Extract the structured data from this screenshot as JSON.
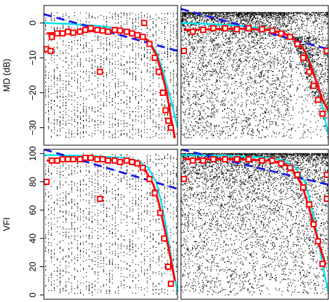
{
  "colors": {
    "points": "#000000",
    "red_fit": "#ff0000",
    "red_markers": "#ff0000",
    "cyan_curve": "#00e5ee",
    "blue_dashed": "#1a1ae6",
    "background": "#ffffff"
  },
  "chart_data": [
    {
      "type": "scatter",
      "panel": "top-left",
      "ylabel": "MD (dB)",
      "ylim": [
        -35,
        5
      ],
      "xlim": [
        0,
        1
      ],
      "yticks": [
        {
          "value": 0,
          "label": "0"
        },
        {
          "value": -10,
          "label": "−10"
        },
        {
          "value": -20,
          "label": "−20"
        },
        {
          "value": -30,
          "label": "−30"
        }
      ],
      "series": [
        {
          "kind": "red-squares",
          "x": [
            0.02,
            0.06,
            0.1,
            0.14,
            0.18,
            0.22,
            0.27,
            0.31,
            0.35,
            0.4,
            0.44,
            0.48,
            0.53,
            0.57,
            0.62,
            0.66,
            0.7,
            0.74,
            0.79,
            0.83,
            0.86,
            0.89,
            0.91,
            0.93,
            0.95,
            0.05,
            0.42,
            0.75
          ],
          "y": [
            -7.5,
            -4,
            -3,
            -3,
            -2.5,
            -2.8,
            -2.5,
            -2,
            -1.5,
            -2,
            -2.2,
            -2.5,
            -2,
            -2.2,
            -2.5,
            -3,
            -3.5,
            -4,
            -6,
            -10,
            -14,
            -20,
            -25,
            -28,
            -30,
            -8,
            -14,
            0
          ]
        },
        {
          "kind": "cyan-curve",
          "x": [
            0.0,
            0.2,
            0.4,
            0.6,
            0.7,
            0.8,
            0.85,
            0.9,
            0.95,
            1.0
          ],
          "y": [
            0,
            -0.3,
            -0.8,
            -1.8,
            -3,
            -6,
            -9,
            -15,
            -22,
            -30
          ]
        },
        {
          "kind": "blue-dashed-line",
          "x": [
            0,
            1
          ],
          "y": [
            2.5,
            -8
          ]
        },
        {
          "kind": "red-fit",
          "x": [
            0.02,
            0.2,
            0.4,
            0.6,
            0.7,
            0.78,
            0.84,
            0.88,
            0.92,
            0.95,
            0.98
          ],
          "y": [
            -3,
            -2.7,
            -2.3,
            -2.3,
            -3,
            -5,
            -9,
            -14,
            -20,
            -27,
            -33
          ]
        }
      ]
    },
    {
      "type": "scatter",
      "panel": "top-right",
      "ylim": [
        -35,
        5
      ],
      "xlim": [
        0,
        1
      ],
      "series": [
        {
          "kind": "red-squares",
          "x": [
            0.02,
            0.08,
            0.15,
            0.22,
            0.3,
            0.38,
            0.46,
            0.55,
            0.62,
            0.68,
            0.74,
            0.79,
            0.83,
            0.87,
            0.9,
            0.93,
            0.96,
            0.99
          ],
          "y": [
            -8,
            -2.5,
            -2,
            -1.5,
            -1.5,
            -1.8,
            -1.5,
            -1.8,
            -2.2,
            -3,
            -4,
            -6,
            -10,
            -14,
            -18,
            -22,
            -26,
            -8
          ]
        },
        {
          "kind": "cyan-curve",
          "x": [
            0.0,
            0.2,
            0.4,
            0.6,
            0.7,
            0.8,
            0.86,
            0.9,
            0.95,
            1.0
          ],
          "y": [
            0,
            -0.3,
            -0.8,
            -1.8,
            -3,
            -6,
            -9,
            -14,
            -22,
            -32
          ]
        },
        {
          "kind": "blue-dashed-line",
          "x": [
            0,
            1
          ],
          "y": [
            4,
            -7.5
          ]
        },
        {
          "kind": "red-fit",
          "x": [
            0.02,
            0.2,
            0.4,
            0.6,
            0.7,
            0.78,
            0.84,
            0.88,
            0.92,
            0.96,
            1.0
          ],
          "y": [
            -2,
            -1.8,
            -1.6,
            -2,
            -3,
            -5,
            -8,
            -12,
            -17,
            -22,
            -25
          ]
        }
      ]
    },
    {
      "type": "scatter",
      "panel": "bottom-left",
      "ylabel": "VFI",
      "ylim": [
        -3,
        103
      ],
      "xlim": [
        0,
        1
      ],
      "yticks": [
        {
          "value": 0,
          "label": "0"
        },
        {
          "value": 20,
          "label": "20"
        },
        {
          "value": 40,
          "label": "40"
        },
        {
          "value": 60,
          "label": "60"
        },
        {
          "value": 80,
          "label": "80"
        },
        {
          "value": 100,
          "label": "100"
        }
      ],
      "series": [
        {
          "kind": "red-squares",
          "x": [
            0.02,
            0.06,
            0.1,
            0.14,
            0.18,
            0.22,
            0.27,
            0.31,
            0.35,
            0.4,
            0.44,
            0.48,
            0.53,
            0.57,
            0.62,
            0.66,
            0.7,
            0.74,
            0.79,
            0.83,
            0.87,
            0.9,
            0.93,
            0.95,
            0.42
          ],
          "y": [
            80,
            95,
            95,
            96,
            96,
            96,
            96,
            97,
            97,
            96,
            96,
            95,
            95,
            94,
            95,
            94,
            93,
            90,
            82,
            72,
            58,
            40,
            20,
            8,
            68
          ]
        },
        {
          "kind": "cyan-curve",
          "x": [
            0.0,
            0.3,
            0.6,
            0.7,
            0.78,
            0.84,
            0.88,
            0.92,
            0.96,
            1.0
          ],
          "y": [
            99,
            98.5,
            97,
            95,
            90,
            80,
            65,
            45,
            22,
            2
          ]
        },
        {
          "kind": "blue-dashed-line",
          "x": [
            0,
            1
          ],
          "y": [
            103,
            75
          ]
        },
        {
          "kind": "red-fit",
          "x": [
            0.02,
            0.2,
            0.4,
            0.6,
            0.7,
            0.76,
            0.82,
            0.86,
            0.9,
            0.94,
            0.98
          ],
          "y": [
            95,
            96,
            96,
            95,
            93,
            88,
            78,
            65,
            48,
            30,
            10
          ]
        }
      ]
    },
    {
      "type": "scatter",
      "panel": "bottom-right",
      "ylim": [
        -3,
        103
      ],
      "xlim": [
        0,
        1
      ],
      "series": [
        {
          "kind": "red-squares",
          "x": [
            0.02,
            0.08,
            0.15,
            0.22,
            0.3,
            0.38,
            0.46,
            0.55,
            0.62,
            0.68,
            0.74,
            0.79,
            0.83,
            0.87,
            0.9,
            0.93,
            0.96,
            0.99,
            0.99
          ],
          "y": [
            82,
            95,
            95,
            96,
            96,
            96,
            96,
            95,
            95,
            93,
            90,
            85,
            76,
            64,
            50,
            38,
            22,
            85,
            68
          ]
        },
        {
          "kind": "cyan-curve",
          "x": [
            0.0,
            0.3,
            0.6,
            0.7,
            0.78,
            0.84,
            0.88,
            0.92,
            0.96,
            1.0
          ],
          "y": [
            99,
            98.5,
            97,
            95,
            90,
            80,
            65,
            45,
            22,
            2
          ]
        },
        {
          "kind": "blue-dashed-line",
          "x": [
            0,
            1
          ],
          "y": [
            103,
            78
          ]
        },
        {
          "kind": "red-fit",
          "x": [
            0.02,
            0.2,
            0.4,
            0.6,
            0.7,
            0.76,
            0.82,
            0.86,
            0.9,
            0.94,
            0.98
          ],
          "y": [
            96,
            96,
            96,
            95,
            93,
            88,
            78,
            65,
            50,
            35,
            22
          ]
        }
      ]
    }
  ]
}
